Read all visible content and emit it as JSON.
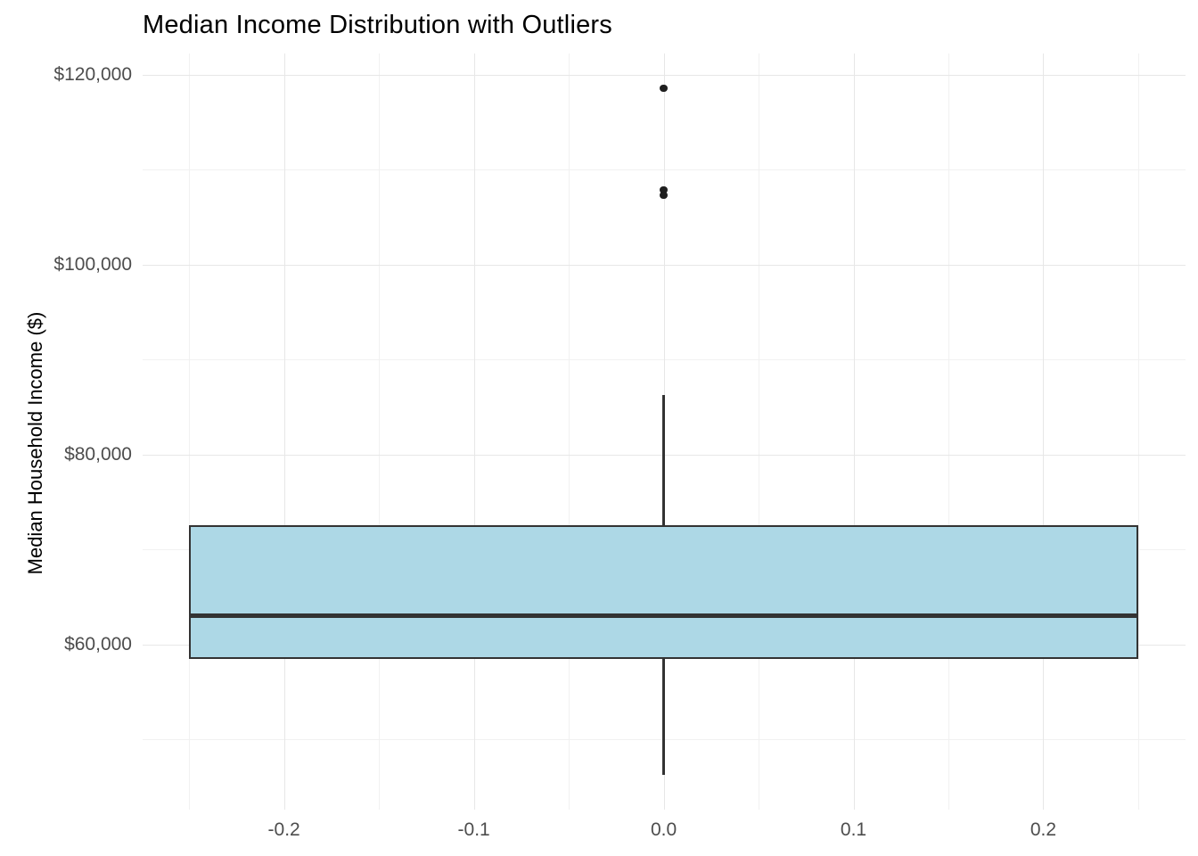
{
  "chart_data": {
    "type": "boxplot",
    "title": "Median Income Distribution with Outliers",
    "xlabel": "",
    "ylabel": "Median Household Income ($)",
    "xlim": [
      -0.2745,
      0.2749
    ],
    "ylim": [
      42600,
      122250
    ],
    "grid": true,
    "legend": false,
    "x_major_ticks": [
      {
        "label": "-0.2",
        "value": -0.2
      },
      {
        "label": "-0.1",
        "value": -0.1
      },
      {
        "label": "0.0",
        "value": 0.0
      },
      {
        "label": "0.1",
        "value": 0.1
      },
      {
        "label": "0.2",
        "value": 0.2
      }
    ],
    "x_minor_values": [
      -0.25,
      -0.15,
      -0.05,
      0.05,
      0.15,
      0.25
    ],
    "y_major_ticks": [
      {
        "label": "$60,000",
        "value": 60000
      },
      {
        "label": "$80,000",
        "value": 80000
      },
      {
        "label": "$100,000",
        "value": 100000
      },
      {
        "label": "$120,000",
        "value": 120000
      }
    ],
    "y_minor_values": [
      50000,
      70000,
      90000,
      110000
    ],
    "box": {
      "x": 0,
      "width": 0.5,
      "whisker_low": 46300,
      "q1": 58500,
      "median": 63000,
      "q3": 72600,
      "whisker_high": 86300,
      "outliers": [
        118600,
        107900,
        107300
      ]
    },
    "colors": {
      "box_fill": "#ADD8E6",
      "box_stroke": "#333333",
      "median_stroke": "#333333",
      "outlier": "#1f1f1f",
      "grid_major": "#e7e7e7",
      "grid_minor": "#f1f1f1",
      "axis_text": "#4d4d4d",
      "title_text": "#000000"
    }
  }
}
